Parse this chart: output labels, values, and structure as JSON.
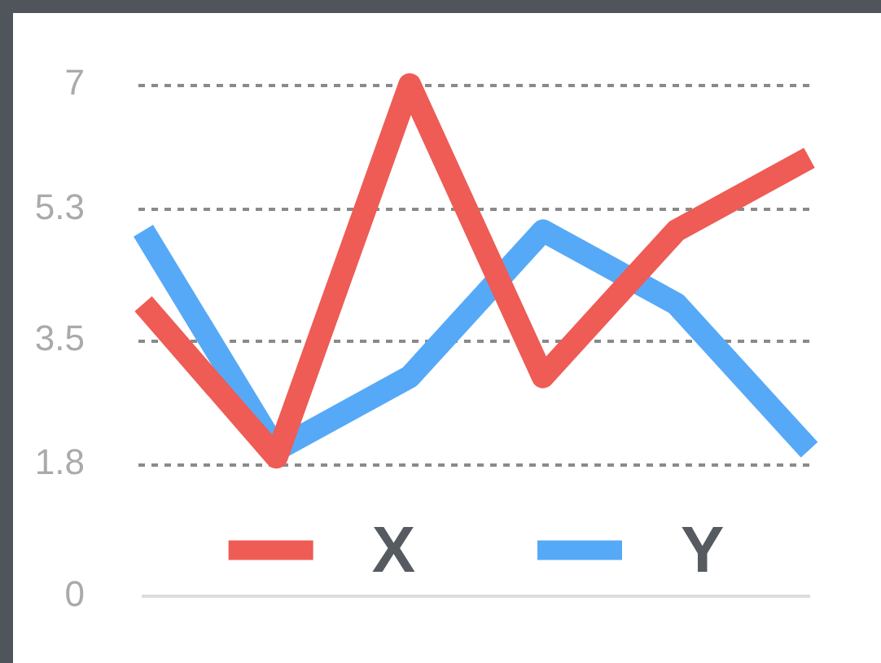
{
  "chart_data": {
    "type": "line",
    "categories": [
      null,
      null,
      null,
      null,
      null,
      null
    ],
    "series": [
      {
        "name": "X",
        "color": "#ef5b55",
        "values": [
          4,
          1.9,
          7,
          3,
          5,
          6
        ]
      },
      {
        "name": "Y",
        "color": "#56a9f7",
        "values": [
          5,
          2,
          3,
          5,
          4,
          2
        ]
      }
    ],
    "ylim": [
      0,
      7
    ],
    "yticks": [
      0,
      1.8,
      3.5,
      5.3,
      7
    ],
    "grid": "y",
    "legend": "bottom",
    "marker": "none",
    "line_style": "solid"
  }
}
